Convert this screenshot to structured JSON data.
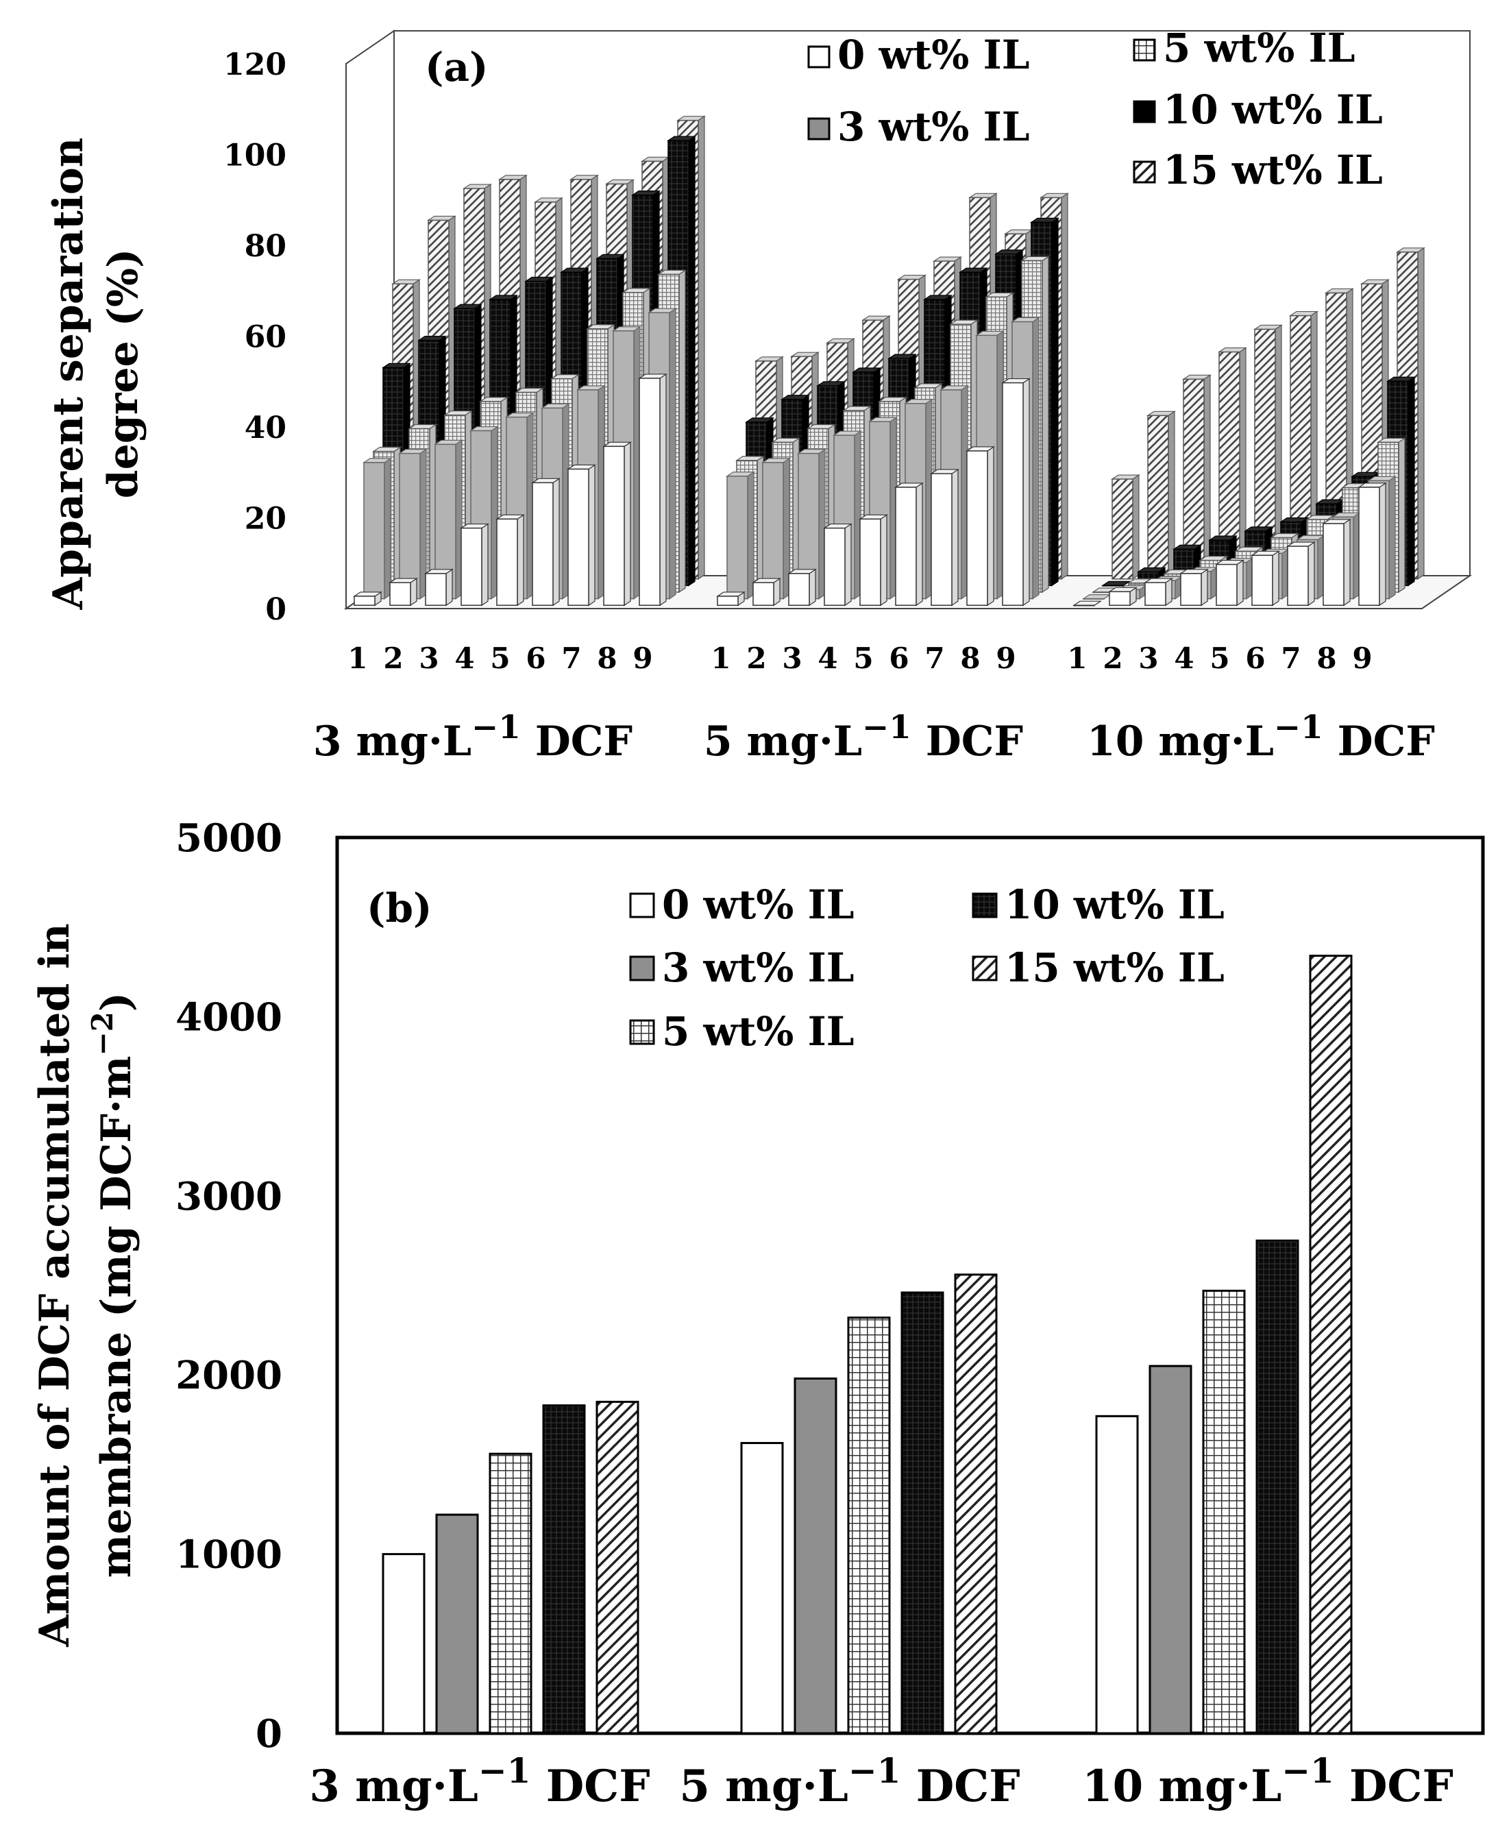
{
  "chart_data": [
    {
      "type": "bar",
      "style": "3d",
      "panel_label": "(a)",
      "title": "",
      "ylabel": [
        "Apparent separation",
        "degree (%)"
      ],
      "xlabel": "",
      "ylim": [
        0,
        120
      ],
      "yticks": [
        "0",
        "20",
        "40",
        "60",
        "80",
        "100",
        "120"
      ],
      "group_unit": {
        "prefix": "mg·L",
        "exponent": "−1",
        "suffix": "DCF"
      },
      "groups": [
        {
          "label_number": "3",
          "x_ticks": [
            "1",
            "2",
            "3",
            "4",
            "5",
            "6",
            "7",
            "8",
            "9"
          ]
        },
        {
          "label_number": "5",
          "x_ticks": [
            "1",
            "2",
            "3",
            "4",
            "5",
            "6",
            "7",
            "8",
            "9"
          ]
        },
        {
          "label_number": "10",
          "x_ticks": [
            "1",
            "2",
            "3",
            "4",
            "5",
            "6",
            "7",
            "8",
            "9"
          ]
        }
      ],
      "series": [
        {
          "name": "0 wt% IL",
          "pattern": "white",
          "values": [
            [
              2,
              5,
              7,
              17,
              19,
              27,
              30,
              35,
              50
            ],
            [
              2,
              5,
              7,
              17,
              19,
              26,
              29,
              34,
              49
            ],
            [
              0,
              3,
              5,
              7,
              9,
              11,
              13,
              18,
              26
            ]
          ]
        },
        {
          "name": "3 wt% IL",
          "pattern": "gray",
          "values": [
            [
              30,
              32,
              34,
              37,
              40,
              42,
              46,
              59,
              63
            ],
            [
              27,
              30,
              32,
              36,
              39,
              43,
              46,
              58,
              61
            ],
            [
              0,
              2,
              4,
              6,
              8,
              10,
              13,
              18,
              26
            ]
          ]
        },
        {
          "name": "5 wt% IL",
          "pattern": "grid",
          "values": [
            [
              31,
              36,
              39,
              42,
              44,
              47,
              58,
              66,
              70
            ],
            [
              29,
              33,
              36,
              40,
              42,
              45,
              59,
              65,
              73
            ],
            [
              0,
              2,
              4,
              7,
              9,
              12,
              16,
              23,
              33
            ]
          ]
        },
        {
          "name": "10 wt% IL",
          "pattern": "black",
          "values": [
            [
              48,
              54,
              61,
              63,
              67,
              69,
              72,
              86,
              98
            ],
            [
              36,
              41,
              44,
              47,
              50,
              63,
              69,
              73,
              80
            ],
            [
              0,
              3,
              8,
              10,
              12,
              14,
              18,
              24,
              45
            ]
          ]
        },
        {
          "name": "15 wt% IL",
          "pattern": "hatch",
          "values": [
            [
              65,
              79,
              86,
              88,
              83,
              88,
              87,
              92,
              101
            ],
            [
              48,
              49,
              52,
              57,
              66,
              70,
              84,
              76,
              84
            ],
            [
              22,
              36,
              44,
              50,
              55,
              58,
              63,
              65,
              72
            ]
          ]
        }
      ],
      "legend_position": "top-right"
    },
    {
      "type": "bar",
      "panel_label": "(b)",
      "title": "",
      "ylabel": [
        "Amount of DCF accumulated in",
        "membrane (mg DCF·m",
        "−2",
        ")"
      ],
      "xlabel": "",
      "ylim": [
        0,
        5000
      ],
      "yticks": [
        "0",
        "1000",
        "2000",
        "3000",
        "4000",
        "5000"
      ],
      "group_unit": {
        "prefix": "mg·L",
        "exponent": "−1",
        "suffix": "DCF"
      },
      "categories": [
        "3",
        "5",
        "10"
      ],
      "series": [
        {
          "name": "0 wt% IL",
          "pattern": "white",
          "values": [
            1000,
            1620,
            1770
          ]
        },
        {
          "name": "3 wt% IL",
          "pattern": "gray",
          "values": [
            1220,
            1980,
            2050
          ]
        },
        {
          "name": "5 wt% IL",
          "pattern": "grid",
          "values": [
            1560,
            2320,
            2470
          ]
        },
        {
          "name": "10 wt% IL",
          "pattern": "black",
          "values": [
            1830,
            2460,
            2750
          ]
        },
        {
          "name": "15 wt% IL",
          "pattern": "hatch",
          "values": [
            1850,
            2560,
            4340
          ]
        }
      ],
      "legend_position": "top"
    }
  ]
}
